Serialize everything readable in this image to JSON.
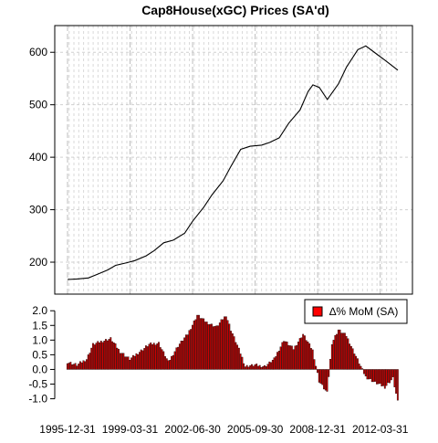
{
  "chart_data": [
    {
      "panel": "prices",
      "type": "line",
      "title": "Cap8House(xGC) Prices (SA'd)",
      "ylim": [
        160,
        630
      ],
      "yticks": [
        200,
        300,
        400,
        500,
        600
      ],
      "grid": true,
      "x_range": [
        "1995-12",
        "2013-02"
      ],
      "series": [
        {
          "color": "#000000",
          "points": [
            [
              "1995-12",
              167
            ],
            [
              "1996-06",
              168
            ],
            [
              "1997-01",
              170
            ],
            [
              "1997-06",
              176
            ],
            [
              "1998-01",
              185
            ],
            [
              "1998-06",
              194
            ],
            [
              "1999-01",
              199
            ],
            [
              "1999-06",
              203
            ],
            [
              "2000-01",
              212
            ],
            [
              "2000-06",
              222
            ],
            [
              "2000-12",
              237
            ],
            [
              "2001-06",
              242
            ],
            [
              "2002-01",
              255
            ],
            [
              "2002-06",
              278
            ],
            [
              "2003-01",
              305
            ],
            [
              "2003-06",
              328
            ],
            [
              "2004-01",
              355
            ],
            [
              "2004-06",
              383
            ],
            [
              "2004-12",
              415
            ],
            [
              "2005-06",
              421
            ],
            [
              "2006-01",
              423
            ],
            [
              "2006-06",
              428
            ],
            [
              "2006-12",
              437
            ],
            [
              "2007-06",
              465
            ],
            [
              "2008-01",
              490
            ],
            [
              "2008-06",
              525
            ],
            [
              "2008-09",
              538
            ],
            [
              "2009-01",
              533
            ],
            [
              "2009-06",
              510
            ],
            [
              "2010-01",
              540
            ],
            [
              "2010-06",
              572
            ],
            [
              "2011-01",
              605
            ],
            [
              "2011-06",
              612
            ],
            [
              "2012-01",
              596
            ],
            [
              "2012-06",
              585
            ],
            [
              "2013-02",
              566
            ]
          ]
        }
      ]
    },
    {
      "panel": "mom_change",
      "type": "bar",
      "ylim": [
        -1.2,
        2.1
      ],
      "yticks": [
        "2.0",
        "1.5",
        "1.0",
        "0.5",
        "0.0",
        "-0.5",
        "-1.0"
      ],
      "legend": {
        "position": "top-right",
        "label": "∆% MoM (SA)",
        "color": "#ff0000"
      },
      "bar_color": "#cc0000",
      "anchors": [
        [
          "1995-12",
          0.25
        ],
        [
          "1996-06",
          0.15
        ],
        [
          "1996-12",
          0.35
        ],
        [
          "1997-04",
          0.85
        ],
        [
          "1997-09",
          0.95
        ],
        [
          "1998-03",
          1.05
        ],
        [
          "1998-09",
          0.6
        ],
        [
          "1999-03",
          0.35
        ],
        [
          "1999-09",
          0.6
        ],
        [
          "2000-03",
          0.85
        ],
        [
          "2000-09",
          0.9
        ],
        [
          "2001-03",
          0.25
        ],
        [
          "2001-09",
          0.8
        ],
        [
          "2002-03",
          1.2
        ],
        [
          "2002-09",
          1.85
        ],
        [
          "2003-03",
          1.6
        ],
        [
          "2003-09",
          1.45
        ],
        [
          "2004-03",
          1.85
        ],
        [
          "2004-06",
          1.35
        ],
        [
          "2004-12",
          0.55
        ],
        [
          "2005-03",
          0.1
        ],
        [
          "2005-09",
          0.15
        ],
        [
          "2006-03",
          0.1
        ],
        [
          "2006-09",
          0.35
        ],
        [
          "2007-03",
          1.0
        ],
        [
          "2007-09",
          0.7
        ],
        [
          "2008-03",
          1.2
        ],
        [
          "2008-09",
          0.65
        ],
        [
          "2009-01",
          -0.4
        ],
        [
          "2009-06",
          -0.8
        ],
        [
          "2009-09",
          0.9
        ],
        [
          "2010-01",
          1.35
        ],
        [
          "2010-06",
          1.15
        ],
        [
          "2010-12",
          0.45
        ],
        [
          "2011-06",
          -0.25
        ],
        [
          "2011-12",
          -0.45
        ],
        [
          "2012-06",
          -0.6
        ],
        [
          "2012-11",
          -0.3
        ],
        [
          "2013-02",
          -1.1
        ]
      ]
    }
  ],
  "x_axis": {
    "tick_labels": [
      "1995-12-31",
      "1999-03-31",
      "2002-06-30",
      "2005-09-30",
      "2008-12-31",
      "2012-03-31"
    ]
  }
}
